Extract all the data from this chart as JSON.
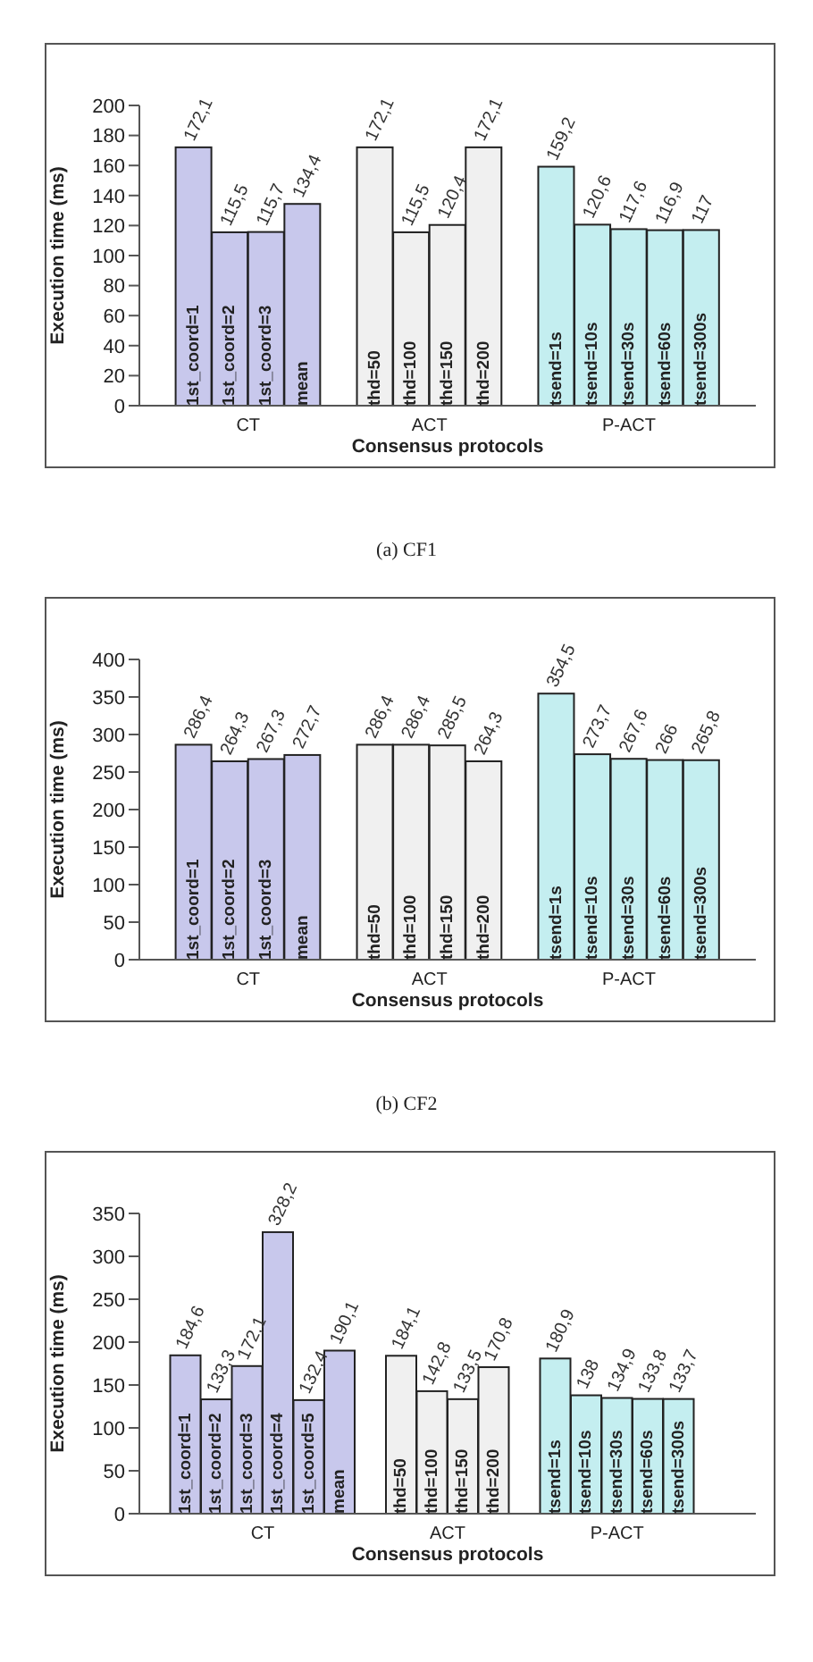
{
  "chart_data": [
    {
      "type": "bar",
      "xlabel": "Consensus protocols",
      "ylabel": "Execution time (ms)",
      "annotations": [
        "(a) CF1"
      ],
      "ylim": [
        0,
        200
      ],
      "yticks": [
        0,
        20,
        40,
        60,
        80,
        100,
        120,
        140,
        160,
        180,
        200
      ],
      "categories": [
        null,
        "1st_coord=1",
        "1st_coord=2",
        "1st_coord=3",
        "mean",
        null,
        "thd=50",
        "thd=100",
        "thd=150",
        "thd=200",
        null,
        "tsend=1s",
        "tsend=10s",
        "tsend=30s",
        "tsend=60s",
        "tsend=300s",
        null
      ],
      "series": [
        {
          "name": "CT",
          "color": "#c8c8ec",
          "values": [
            null,
            172.1,
            115.5,
            115.7,
            134.4,
            null,
            null,
            null,
            null,
            null,
            null,
            null,
            null,
            null,
            null,
            null,
            null
          ],
          "value_labels": [
            null,
            "172,1",
            "115,5",
            "115,7",
            "134,4",
            null,
            null,
            null,
            null,
            null,
            null,
            null,
            null,
            null,
            null,
            null,
            null
          ]
        },
        {
          "name": "ACT",
          "color": "#f0f0f0",
          "values": [
            null,
            null,
            null,
            null,
            null,
            null,
            172.1,
            115.5,
            120.4,
            172.1,
            null,
            null,
            null,
            null,
            null,
            null,
            null
          ],
          "value_labels": [
            null,
            null,
            null,
            null,
            null,
            null,
            "172,1",
            "115,5",
            "120,4",
            "172,1",
            null,
            null,
            null,
            null,
            null,
            null,
            null
          ]
        },
        {
          "name": "P-ACT",
          "color": "#c4eef0",
          "values": [
            null,
            null,
            null,
            null,
            null,
            null,
            null,
            null,
            null,
            null,
            null,
            159.2,
            120.6,
            117.6,
            116.9,
            117,
            null
          ],
          "value_labels": [
            null,
            null,
            null,
            null,
            null,
            null,
            null,
            null,
            null,
            null,
            null,
            "159,2",
            "120,6",
            "117,6",
            "116,9",
            "117",
            null
          ]
        }
      ]
    },
    {
      "type": "bar",
      "xlabel": "Consensus protocols",
      "ylabel": "Execution time (ms)",
      "annotations": [
        "(b) CF2"
      ],
      "ylim": [
        0,
        400
      ],
      "yticks": [
        0,
        50,
        100,
        150,
        200,
        250,
        300,
        350,
        400
      ],
      "categories": [
        null,
        "1st_coord=1",
        "1st_coord=2",
        "1st_coord=3",
        "mean",
        null,
        "thd=50",
        "thd=100",
        "thd=150",
        "thd=200",
        null,
        "tsend=1s",
        "tsend=10s",
        "tsend=30s",
        "tsend=60s",
        "tsend=300s",
        null
      ],
      "series": [
        {
          "name": "CT",
          "color": "#c8c8ec",
          "values": [
            null,
            286.4,
            264.3,
            267.3,
            272.7,
            null,
            null,
            null,
            null,
            null,
            null,
            null,
            null,
            null,
            null,
            null,
            null
          ],
          "value_labels": [
            null,
            "286,4",
            "264,3",
            "267,3",
            "272,7",
            null,
            null,
            null,
            null,
            null,
            null,
            null,
            null,
            null,
            null,
            null,
            null
          ]
        },
        {
          "name": "ACT",
          "color": "#f0f0f0",
          "values": [
            null,
            null,
            null,
            null,
            null,
            null,
            286.4,
            286.4,
            285.5,
            264.3,
            null,
            null,
            null,
            null,
            null,
            null,
            null
          ],
          "value_labels": [
            null,
            null,
            null,
            null,
            null,
            null,
            "286,4",
            "286,4",
            "285,5",
            "264,3",
            null,
            null,
            null,
            null,
            null,
            null,
            null
          ]
        },
        {
          "name": "P-ACT",
          "color": "#c4eef0",
          "values": [
            null,
            null,
            null,
            null,
            null,
            null,
            null,
            null,
            null,
            null,
            null,
            354.5,
            273.7,
            267.6,
            266,
            265.8,
            null
          ],
          "value_labels": [
            null,
            null,
            null,
            null,
            null,
            null,
            null,
            null,
            null,
            null,
            null,
            "354,5",
            "273,7",
            "267,6",
            "266",
            "265,8",
            null
          ]
        }
      ]
    },
    {
      "type": "bar",
      "xlabel": "Consensus protocols",
      "ylabel": "Execution time (ms)",
      "ylim": [
        0,
        350
      ],
      "yticks": [
        0,
        50,
        100,
        150,
        200,
        250,
        300,
        350
      ],
      "categories": [
        null,
        "1st_coord=1",
        "1st_coord=2",
        "1st_coord=3",
        "1st_coord=4",
        "1st_coord=5",
        "mean",
        null,
        "thd=50",
        "thd=100",
        "thd=150",
        "thd=200",
        null,
        "tsend=1s",
        "tsend=10s",
        "tsend=30s",
        "tsend=60s",
        "tsend=300s",
        null,
        null
      ],
      "series": [
        {
          "name": "CT",
          "color": "#c8c8ec",
          "values": [
            null,
            184.6,
            133.3,
            172.1,
            328.2,
            132.4,
            190.1,
            null,
            null,
            null,
            null,
            null,
            null,
            null,
            null,
            null,
            null,
            null,
            null,
            null
          ],
          "value_labels": [
            null,
            "184,6",
            "133,3",
            "172,1",
            "328,2",
            "132,4",
            "190,1",
            null,
            null,
            null,
            null,
            null,
            null,
            null,
            null,
            null,
            null,
            null,
            null,
            null
          ]
        },
        {
          "name": "ACT",
          "color": "#f0f0f0",
          "values": [
            null,
            null,
            null,
            null,
            null,
            null,
            null,
            null,
            184.1,
            142.8,
            133.5,
            170.8,
            null,
            null,
            null,
            null,
            null,
            null,
            null,
            null
          ],
          "value_labels": [
            null,
            null,
            null,
            null,
            null,
            null,
            null,
            null,
            "184,1",
            "142,8",
            "133,5",
            "170,8",
            null,
            null,
            null,
            null,
            null,
            null,
            null,
            null
          ]
        },
        {
          "name": "P-ACT",
          "color": "#c4eef0",
          "values": [
            null,
            null,
            null,
            null,
            null,
            null,
            null,
            null,
            null,
            null,
            null,
            null,
            null,
            180.9,
            138,
            134.9,
            133.8,
            133.7,
            null,
            null
          ],
          "value_labels": [
            null,
            null,
            null,
            null,
            null,
            null,
            null,
            null,
            null,
            null,
            null,
            null,
            null,
            "180,9",
            "138",
            "134,9",
            "133,8",
            "133,7",
            null,
            null
          ]
        }
      ]
    }
  ]
}
